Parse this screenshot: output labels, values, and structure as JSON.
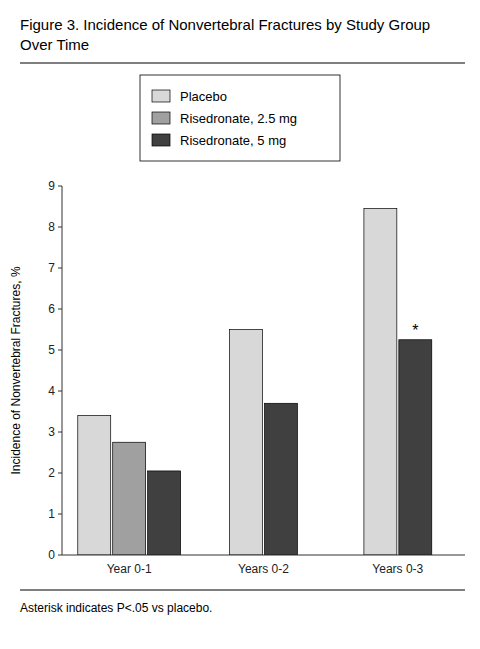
{
  "chart_data": {
    "type": "bar",
    "title": "Figure 3. Incidence of Nonvertebral Fractures by Study Group Over Time",
    "y_label": "Incidence of Nonvertebral Fractures, %",
    "categories": [
      "Year 0-1",
      "Years 0-2",
      "Years 0-3"
    ],
    "series": [
      {
        "name": "Placebo",
        "color": "#d8d8d8",
        "values": [
          3.4,
          5.5,
          8.45
        ]
      },
      {
        "name": "Risedronate, 2.5 mg",
        "color": "#a0a0a0",
        "values": [
          2.75,
          null,
          null
        ]
      },
      {
        "name": "Risedronate, 5 mg",
        "color": "#404040",
        "values": [
          2.05,
          3.7,
          5.25
        ]
      }
    ],
    "ylim": [
      0,
      9
    ],
    "yticks": [
      0,
      1,
      2,
      3,
      4,
      5,
      6,
      7,
      8,
      9
    ],
    "grid": false,
    "annotations": [
      {
        "text": "*",
        "category": "Years 0-3",
        "series": "Risedronate, 5 mg"
      }
    ],
    "footnote": "Asterisk indicates P<.05 vs placebo."
  }
}
